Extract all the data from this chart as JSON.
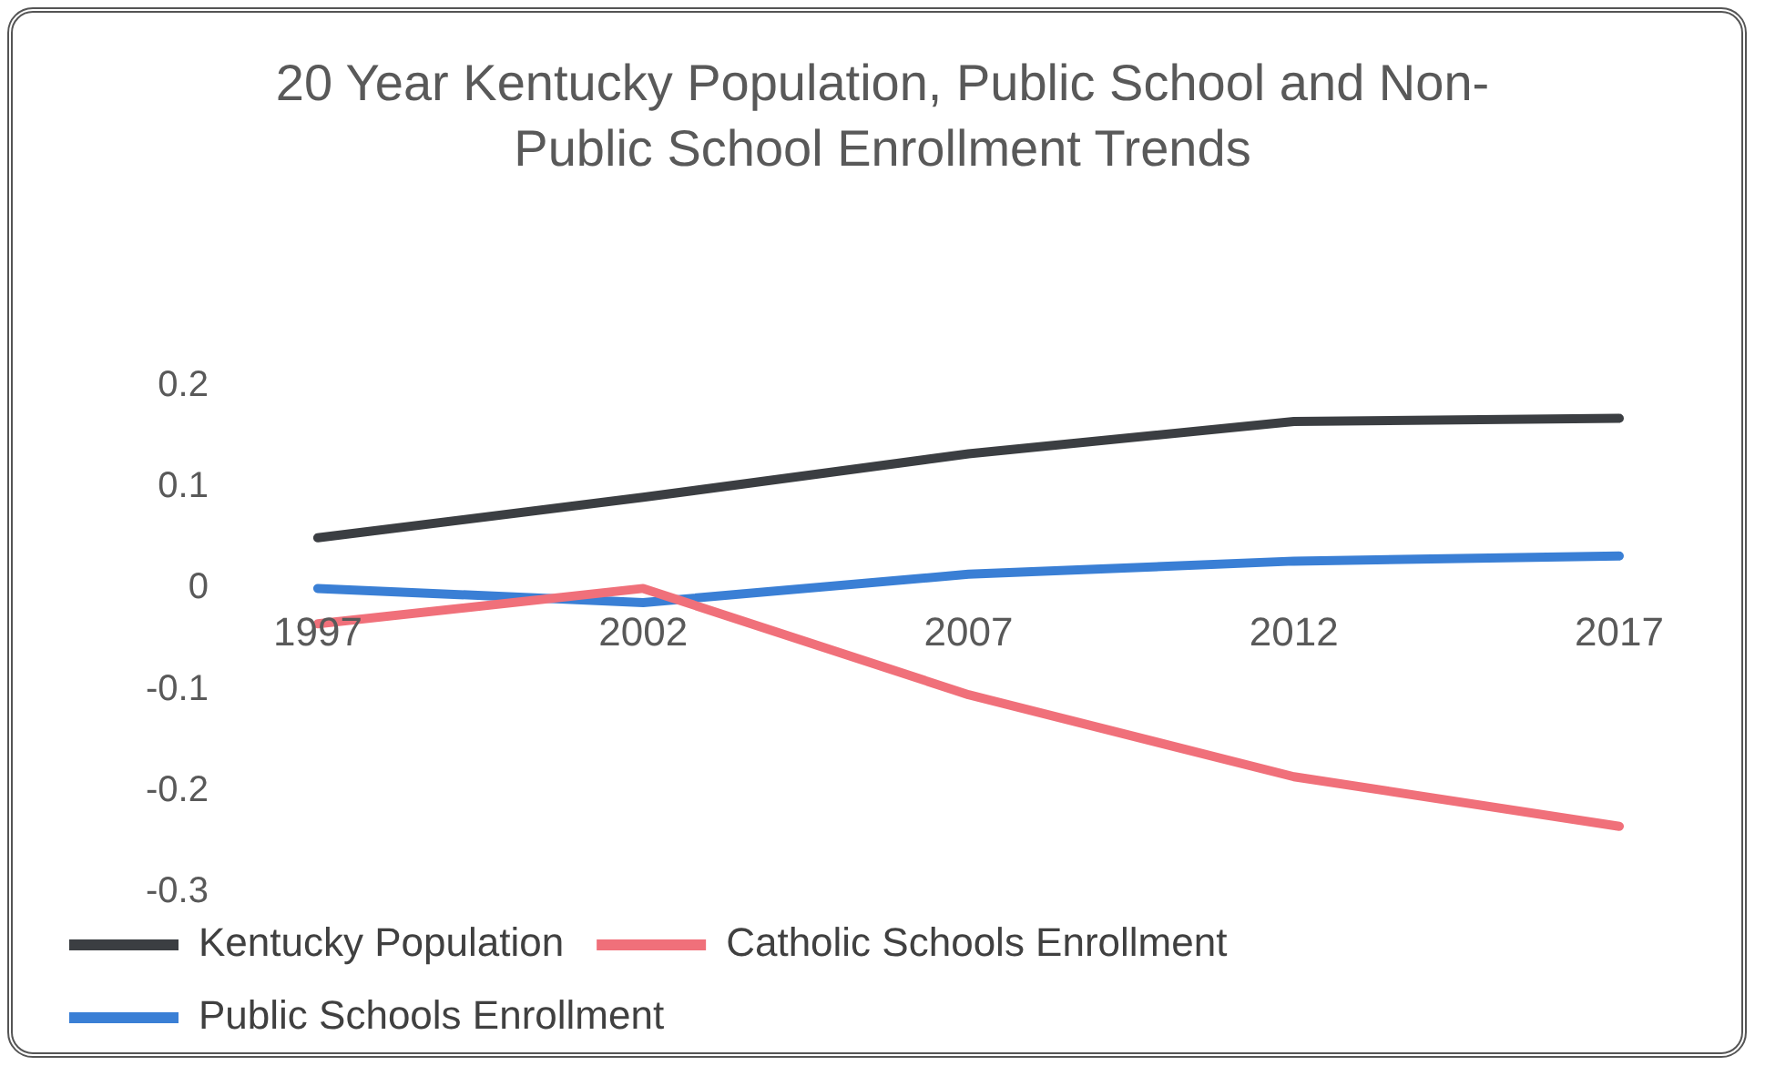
{
  "chart_data": {
    "type": "line",
    "title": "20 Year Kentucky Population, Public School and Non-Public School Enrollment Trends",
    "categories": [
      "1997",
      "2002",
      "2007",
      "2012",
      "2017"
    ],
    "series": [
      {
        "name": "Kentucky Population",
        "color": "#3b3e42",
        "values": [
          0.05,
          0.09,
          0.133,
          0.165,
          0.168
        ]
      },
      {
        "name": "Catholic Schools Enrollment",
        "color": "#f0707a",
        "values": [
          -0.035,
          0,
          -0.105,
          -0.186,
          -0.235
        ]
      },
      {
        "name": "Public Schools Enrollment",
        "color": "#3a7fd5",
        "values": [
          0,
          -0.014,
          0.014,
          0.027,
          0.032
        ]
      }
    ],
    "ylim": [
      -0.3,
      0.2
    ],
    "yticks": [
      -0.3,
      -0.2,
      -0.1,
      0,
      0.1,
      0.2
    ],
    "grid": false,
    "legend": "bottom",
    "marker": "none",
    "line_style": "solid"
  }
}
